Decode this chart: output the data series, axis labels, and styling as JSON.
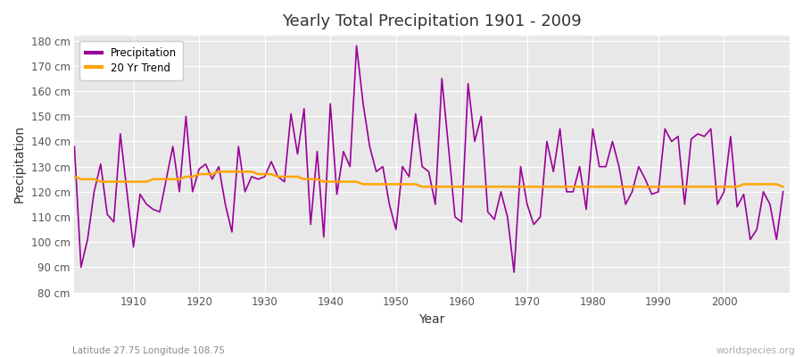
{
  "title": "Yearly Total Precipitation 1901 - 2009",
  "xlabel": "Year",
  "ylabel": "Precipitation",
  "subtitle": "Latitude 27.75 Longitude 108.75",
  "watermark": "worldspecies.org",
  "fig_bg_color": "#ffffff",
  "plot_bg_color": "#e8e8e8",
  "precip_color": "#990099",
  "trend_color": "#ffa500",
  "ylim": [
    80,
    182
  ],
  "yticks": [
    80,
    90,
    100,
    110,
    120,
    130,
    140,
    150,
    160,
    170,
    180
  ],
  "years": [
    1901,
    1902,
    1903,
    1904,
    1905,
    1906,
    1907,
    1908,
    1909,
    1910,
    1911,
    1912,
    1913,
    1914,
    1915,
    1916,
    1917,
    1918,
    1919,
    1920,
    1921,
    1922,
    1923,
    1924,
    1925,
    1926,
    1927,
    1928,
    1929,
    1930,
    1931,
    1932,
    1933,
    1934,
    1935,
    1936,
    1937,
    1938,
    1939,
    1940,
    1941,
    1942,
    1943,
    1944,
    1945,
    1946,
    1947,
    1948,
    1949,
    1950,
    1951,
    1952,
    1953,
    1954,
    1955,
    1956,
    1957,
    1958,
    1959,
    1960,
    1961,
    1962,
    1963,
    1964,
    1965,
    1966,
    1967,
    1968,
    1969,
    1970,
    1971,
    1972,
    1973,
    1974,
    1975,
    1976,
    1977,
    1978,
    1979,
    1980,
    1981,
    1982,
    1983,
    1984,
    1985,
    1986,
    1987,
    1988,
    1989,
    1990,
    1991,
    1992,
    1993,
    1994,
    1995,
    1996,
    1997,
    1998,
    1999,
    2000,
    2001,
    2002,
    2003,
    2004,
    2005,
    2006,
    2007,
    2008,
    2009
  ],
  "precip": [
    138,
    90,
    101,
    120,
    131,
    111,
    108,
    143,
    120,
    98,
    119,
    115,
    113,
    112,
    125,
    138,
    120,
    150,
    120,
    129,
    131,
    125,
    130,
    115,
    104,
    138,
    120,
    126,
    125,
    126,
    132,
    126,
    124,
    151,
    135,
    153,
    107,
    136,
    102,
    155,
    119,
    136,
    130,
    178,
    155,
    138,
    128,
    130,
    115,
    105,
    130,
    126,
    151,
    130,
    128,
    115,
    165,
    138,
    110,
    108,
    163,
    140,
    150,
    112,
    109,
    120,
    110,
    88,
    130,
    115,
    107,
    110,
    140,
    128,
    145,
    120,
    120,
    130,
    113,
    145,
    130,
    130,
    140,
    130,
    115,
    120,
    130,
    125,
    119,
    120,
    145,
    140,
    142,
    115,
    141,
    143,
    142,
    145,
    115,
    120,
    142,
    114,
    119,
    101,
    105,
    120,
    115,
    101,
    120
  ],
  "trend": [
    126,
    125,
    125,
    125,
    124,
    124,
    124,
    124,
    124,
    124,
    124,
    124,
    125,
    125,
    125,
    125,
    125,
    126,
    126,
    127,
    127,
    127,
    128,
    128,
    128,
    128,
    128,
    128,
    127,
    127,
    127,
    126,
    126,
    126,
    126,
    125,
    125,
    125,
    124,
    124,
    124,
    124,
    124,
    124,
    123,
    123,
    123,
    123,
    123,
    123,
    123,
    123,
    123,
    122,
    122,
    122,
    122,
    122,
    122,
    122,
    122,
    122,
    122,
    122,
    122,
    122,
    122,
    122,
    122,
    122,
    122,
    122,
    122,
    122,
    122,
    122,
    122,
    122,
    122,
    122,
    122,
    122,
    122,
    122,
    122,
    122,
    122,
    122,
    122,
    122,
    122,
    122,
    122,
    122,
    122,
    122,
    122,
    122,
    122,
    122,
    122,
    122,
    123,
    123,
    123,
    123,
    123,
    123,
    122
  ]
}
